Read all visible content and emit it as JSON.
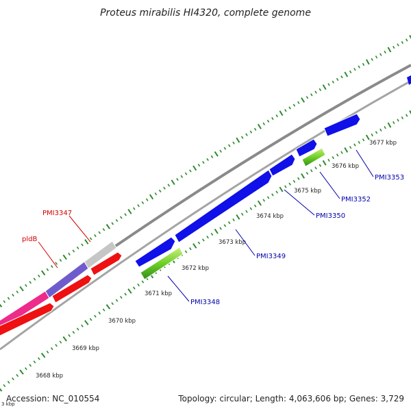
{
  "title": "Proteus mirabilis HI4320, complete genome",
  "accession": "Accession: NC_010554",
  "summary": "Topology: circular; Length: 4,063,606 bp; Genes: 3,729",
  "corner_partial_label": "3 kbp",
  "ticks": [
    {
      "label": "3668 kbp"
    },
    {
      "label": "3669 kbp"
    },
    {
      "label": "3670 kbp"
    },
    {
      "label": "3671 kbp"
    },
    {
      "label": "3672 kbp"
    },
    {
      "label": "3673 kbp"
    },
    {
      "label": "3674 kbp"
    },
    {
      "label": "3675 kbp"
    },
    {
      "label": "3676 kbp"
    },
    {
      "label": "3677 kbp"
    }
  ],
  "gene_labels": [
    {
      "label": "PMI3347",
      "color": "#d40000"
    },
    {
      "label": "pldB",
      "color": "#d40000"
    },
    {
      "label": "PMI3348",
      "color": "#0000aa"
    },
    {
      "label": "PMI3349",
      "color": "#0000aa"
    },
    {
      "label": "PMI3350",
      "color": "#0000aa"
    },
    {
      "label": "PMI3352",
      "color": "#0000aa"
    },
    {
      "label": "PMI3353",
      "color": "#0000aa"
    }
  ],
  "colors": {
    "forward_cds": "#1010e8",
    "forward_rna": "#66cc22",
    "reverse_cds": "#ee1111",
    "reverse_pink": "#ee2a8a",
    "reverse_purple": "#6f5ccc",
    "reverse_grey": "#c6c6c6",
    "backbone": "#8a8a8a",
    "tick": "#2a8a2a"
  }
}
